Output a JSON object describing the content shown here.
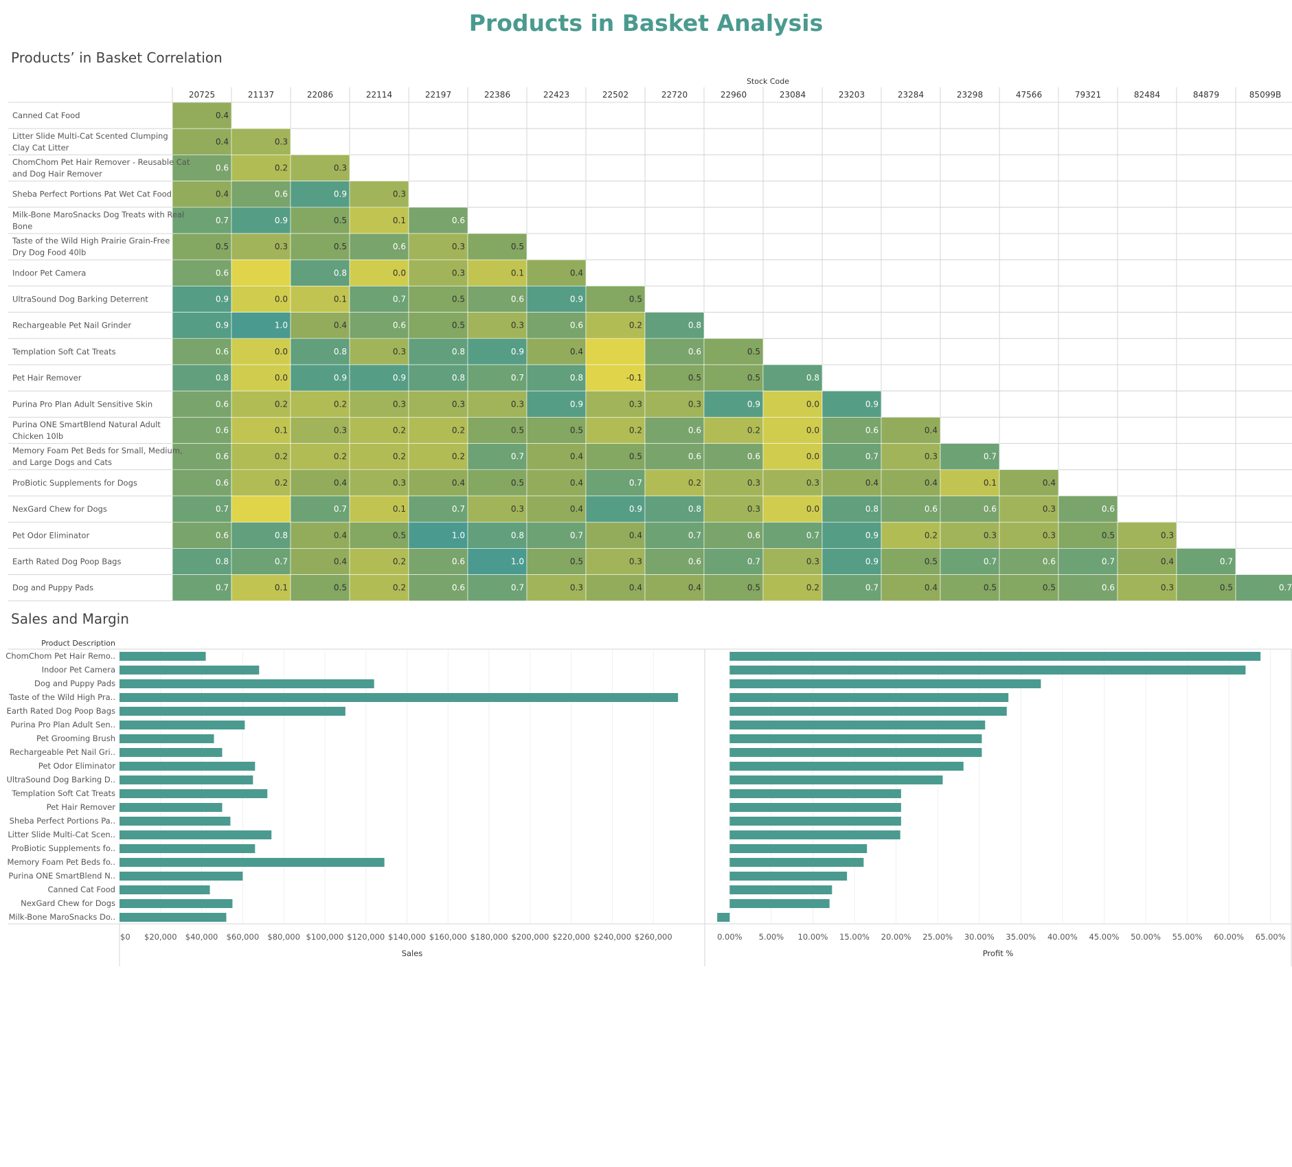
{
  "page": {
    "title": "Products in Basket Analysis",
    "heatmap_section_title": "Products’ in Basket Correlation",
    "bars_section_title": "Sales and Margin"
  },
  "colors": {
    "title": "#4a9a8f",
    "bar": "#4a9a8f",
    "grid": "#d5d5d5",
    "scale_low": "#e0d44a",
    "scale_mid": "#8aa85e",
    "scale_high": "#4a9a8f"
  },
  "chart_data": [
    {
      "type": "heatmap",
      "title": "Products’ in Basket Correlation",
      "xlabel": "Stock Code",
      "x_categories": [
        "20725",
        "21137",
        "22086",
        "22114",
        "22197",
        "22386",
        "22423",
        "22502",
        "22720",
        "22960",
        "23084",
        "23203",
        "23284",
        "23298",
        "47566",
        "79321",
        "82484",
        "84879",
        "85099B"
      ],
      "y_categories": [
        "Canned Cat Food",
        "Litter Slide Multi-Cat Scented Clumping Clay Cat Litter",
        "ChomChom Pet Hair Remover - Reusable Cat and Dog Hair Remover",
        "Sheba Perfect Portions Pat Wet Cat Food",
        "Milk-Bone MaroSnacks Dog Treats with Real Bone",
        "Taste of the Wild High Prairie Grain-Free Dry Dog Food 40lb",
        "Indoor Pet Camera",
        "UltraSound Dog Barking Deterrent",
        "Rechargeable Pet Nail Grinder",
        "Templation Soft Cat Treats",
        "Pet Hair Remover",
        "Purina Pro Plan Adult Sensitive Skin",
        "Purina ONE SmartBlend Natural Adult Chicken 10lb",
        "Memory Foam Pet Beds for Small, Medium, and Large Dogs and Cats",
        "ProBiotic Supplements for Dogs",
        "NexGard Chew for Dogs",
        "Pet Odor Eliminator",
        "Earth Rated Dog Poop Bags",
        "Dog and Puppy Pads"
      ],
      "values": [
        [
          "0.4"
        ],
        [
          "0.4",
          "0.3"
        ],
        [
          "0.6",
          "0.2",
          "0.3"
        ],
        [
          "0.4",
          "0.6",
          "0.9",
          "0.3"
        ],
        [
          "0.7",
          "0.9",
          "0.5",
          "0.1",
          "0.6"
        ],
        [
          "0.5",
          "0.3",
          "0.5",
          "0.6",
          "0.3",
          "0.5"
        ],
        [
          "0.6",
          "",
          "0.8",
          "0.0",
          "0.3",
          "0.1",
          "0.4"
        ],
        [
          "0.9",
          "0.0",
          "0.1",
          "0.7",
          "0.5",
          "0.6",
          "0.9",
          "0.5"
        ],
        [
          "0.9",
          "1.0",
          "0.4",
          "0.6",
          "0.5",
          "0.3",
          "0.6",
          "0.2",
          "0.8"
        ],
        [
          "0.6",
          "0.0",
          "0.8",
          "0.3",
          "0.8",
          "0.9",
          "0.4",
          "",
          "0.6",
          "0.5"
        ],
        [
          "0.8",
          "0.0",
          "0.9",
          "0.9",
          "0.8",
          "0.7",
          "0.8",
          "-0.1",
          "0.5",
          "0.5",
          "0.8"
        ],
        [
          "0.6",
          "0.2",
          "0.2",
          "0.3",
          "0.3",
          "0.3",
          "0.9",
          "0.3",
          "0.3",
          "0.9",
          "0.0",
          "0.9"
        ],
        [
          "0.6",
          "0.1",
          "0.3",
          "0.2",
          "0.2",
          "0.5",
          "0.5",
          "0.2",
          "0.6",
          "0.2",
          "0.0",
          "0.6",
          "0.4"
        ],
        [
          "0.6",
          "0.2",
          "0.2",
          "0.2",
          "0.2",
          "0.7",
          "0.4",
          "0.5",
          "0.6",
          "0.6",
          "0.0",
          "0.7",
          "0.3",
          "0.7"
        ],
        [
          "0.6",
          "0.2",
          "0.4",
          "0.3",
          "0.4",
          "0.5",
          "0.4",
          "0.7",
          "0.2",
          "0.3",
          "0.3",
          "0.4",
          "0.4",
          "0.1",
          "0.4"
        ],
        [
          "0.7",
          "",
          "0.7",
          "0.1",
          "0.7",
          "0.3",
          "0.4",
          "0.9",
          "0.8",
          "0.3",
          "0.0",
          "0.8",
          "0.6",
          "0.6",
          "0.3",
          "0.6"
        ],
        [
          "0.6",
          "0.8",
          "0.4",
          "0.5",
          "1.0",
          "0.8",
          "0.7",
          "0.4",
          "0.7",
          "0.6",
          "0.7",
          "0.9",
          "0.2",
          "0.3",
          "0.3",
          "0.5",
          "0.3"
        ],
        [
          "0.8",
          "0.7",
          "0.4",
          "0.2",
          "0.6",
          "1.0",
          "0.5",
          "0.3",
          "0.6",
          "0.7",
          "0.3",
          "0.9",
          "0.5",
          "0.7",
          "0.6",
          "0.7",
          "0.4",
          "0.7"
        ],
        [
          "0.7",
          "0.1",
          "0.5",
          "0.2",
          "0.6",
          "0.7",
          "0.3",
          "0.4",
          "0.4",
          "0.5",
          "0.2",
          "0.7",
          "0.4",
          "0.5",
          "0.5",
          "0.6",
          "0.3",
          "0.5",
          "0.7"
        ]
      ]
    },
    {
      "type": "bar",
      "title": "Sales and Margin",
      "orientation": "horizontal",
      "category_header": "Product Description",
      "categories": [
        "ChomChom Pet Hair Remo..",
        "Indoor Pet Camera",
        "Dog and Puppy Pads",
        "Taste of the Wild High Pra..",
        "Earth Rated Dog Poop Bags",
        "Purina Pro Plan Adult Sen..",
        "Pet Grooming Brush",
        "Rechargeable Pet Nail Gri..",
        "Pet Odor Eliminator",
        "UltraSound Dog Barking D..",
        "Templation Soft Cat Treats",
        "Pet Hair Remover",
        "Sheba Perfect Portions Pa..",
        "Litter Slide Multi-Cat Scen..",
        "ProBiotic Supplements fo..",
        "Memory Foam Pet Beds fo..",
        "Purina ONE SmartBlend N..",
        "Canned Cat Food",
        "NexGard Chew for Dogs",
        "Milk-Bone MaroSnacks Do.."
      ],
      "panels": [
        {
          "xlabel": "Sales",
          "xlim": [
            0,
            285000
          ],
          "ticks": [
            0,
            20000,
            40000,
            60000,
            80000,
            100000,
            120000,
            140000,
            160000,
            180000,
            200000,
            220000,
            240000,
            260000
          ],
          "tick_labels": [
            "$0",
            "$20,000",
            "$40,000",
            "$60,000",
            "$80,000",
            "$100,000",
            "$120,000",
            "$140,000",
            "$160,000",
            "$180,000",
            "$200,000",
            "$220,000",
            "$240,000",
            "$260,000"
          ],
          "values": [
            42000,
            68000,
            124000,
            272000,
            110000,
            61000,
            46000,
            50000,
            66000,
            65000,
            72000,
            50000,
            54000,
            74000,
            66000,
            129000,
            60000,
            44000,
            55000,
            52000
          ]
        },
        {
          "xlabel": "Profit %",
          "xlim": [
            -3,
            67.5
          ],
          "ticks": [
            0,
            5,
            10,
            15,
            20,
            25,
            30,
            35,
            40,
            45,
            50,
            55,
            60,
            65
          ],
          "tick_labels": [
            "0.00%",
            "5.00%",
            "10.00%",
            "15.00%",
            "20.00%",
            "25.00%",
            "30.00%",
            "35.00%",
            "40.00%",
            "45.00%",
            "50.00%",
            "55.00%",
            "60.00%",
            "65.00%"
          ],
          "values": [
            63.8,
            62.0,
            37.4,
            33.5,
            33.3,
            30.7,
            30.3,
            30.3,
            28.1,
            25.6,
            20.6,
            20.6,
            20.6,
            20.5,
            16.5,
            16.1,
            14.1,
            12.3,
            12.0,
            -1.5
          ]
        }
      ]
    }
  ]
}
